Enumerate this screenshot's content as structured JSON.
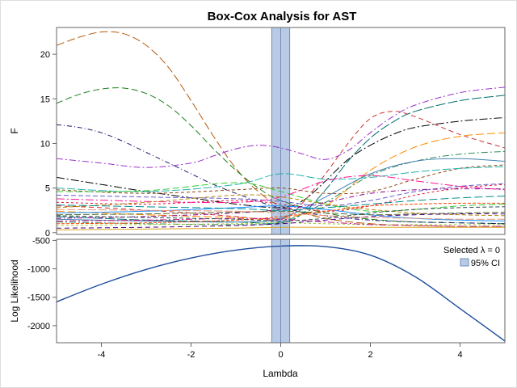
{
  "chart_data": {
    "type": "line",
    "title": "Box-Cox Analysis for AST",
    "xlabel": "Lambda",
    "xlim": [
      -5,
      5
    ],
    "xticks": [
      -4,
      -2,
      0,
      2,
      4
    ],
    "selected_lambda": 0,
    "ci": [
      -0.2,
      0.2
    ],
    "ci_fill": "#b9cbe4",
    "ci_stroke": "#6f8db9",
    "legend": {
      "placement": "top-right",
      "selected_label": "Selected λ = 0",
      "ci_label": "95% CI"
    },
    "top_panel": {
      "ylabel": "F",
      "ylim": [
        -0.2,
        23
      ],
      "yticks": [
        0,
        5,
        10,
        15,
        20
      ],
      "series": [
        {
          "color": "#b35806",
          "dash": "10,4",
          "x": [
            -5,
            -4.5,
            -4,
            -3.5,
            -3,
            -2.5,
            -2,
            -1.5,
            -1,
            -0.5,
            0,
            1,
            2,
            3,
            4,
            5
          ],
          "y": [
            21,
            21.9,
            22.5,
            22.3,
            21,
            18.5,
            14.8,
            10.8,
            7.2,
            4.6,
            3.0,
            1.6,
            1.0,
            0.8,
            0.7,
            0.7
          ]
        },
        {
          "color": "#1b7f1b",
          "dash": "8,4",
          "x": [
            -5,
            -4.5,
            -4,
            -3.5,
            -3,
            -2.5,
            -2,
            -1.5,
            -1,
            -0.5,
            0,
            1,
            2,
            3,
            4,
            5
          ],
          "y": [
            14.5,
            15.5,
            16.1,
            16.2,
            15.6,
            14.2,
            12.0,
            9.4,
            7.0,
            5.0,
            3.6,
            2.2,
            1.5,
            1.2,
            1.1,
            1.0
          ]
        },
        {
          "color": "#191970",
          "dash": "6,3,1,3",
          "x": [
            -5,
            -4.5,
            -4,
            -3.5,
            -3,
            -2.5,
            -2,
            -1.5,
            -1,
            -0.5,
            0,
            1,
            2,
            3,
            4,
            5
          ],
          "y": [
            12.1,
            11.8,
            11.2,
            10.2,
            9.0,
            7.8,
            6.6,
            5.4,
            4.4,
            3.5,
            2.8,
            1.9,
            1.4,
            1.2,
            1.1,
            1.0
          ]
        },
        {
          "color": "#9932cc",
          "dash": "8,3,2,3",
          "x": [
            -5,
            -4,
            -3,
            -2,
            -1.5,
            -1,
            -0.5,
            0,
            0.5,
            1,
            1.5,
            2,
            2.5,
            3,
            4,
            5
          ],
          "y": [
            8.3,
            7.8,
            7.3,
            7.8,
            8.6,
            9.4,
            9.8,
            9.5,
            8.8,
            8.2,
            9.2,
            11.2,
            13.0,
            14.3,
            15.7,
            16.3
          ]
        },
        {
          "color": "#006d6d",
          "dash": "12,3",
          "x": [
            -5,
            -4,
            -3,
            -2,
            -1,
            0,
            0.5,
            1,
            1.5,
            2,
            2.5,
            3,
            4,
            5
          ],
          "y": [
            1.8,
            1.6,
            1.4,
            1.3,
            1.2,
            1.1,
            2.2,
            4.8,
            8.0,
            10.6,
            12.4,
            13.6,
            14.8,
            15.4
          ]
        },
        {
          "color": "#000000",
          "dash": "10,3,2,3",
          "x": [
            -5,
            -4,
            -3,
            -2,
            -1,
            0,
            0.5,
            1,
            1.5,
            2,
            2.5,
            3,
            4,
            5
          ],
          "y": [
            6.2,
            5.4,
            4.6,
            3.9,
            3.2,
            2.8,
            3.6,
            5.8,
            8.2,
            9.8,
            11.0,
            11.8,
            12.5,
            12.9
          ]
        },
        {
          "color": "#cc3333",
          "dash": "6,4",
          "x": [
            -5,
            -4,
            -3,
            -2,
            -1,
            0,
            0.5,
            1,
            1.5,
            2,
            2.5,
            3,
            4,
            5
          ],
          "y": [
            3.0,
            2.8,
            2.5,
            2.2,
            1.8,
            1.5,
            3.4,
            6.6,
            10.0,
            12.8,
            13.6,
            13.0,
            11.0,
            9.5
          ]
        },
        {
          "color": "#ff8c00",
          "dash": "10,4",
          "x": [
            -5,
            -3,
            -1,
            0,
            1,
            2,
            3,
            4,
            5
          ],
          "y": [
            2.4,
            2.0,
            1.7,
            1.6,
            3.0,
            7.0,
            9.6,
            10.8,
            11.2
          ]
        },
        {
          "color": "#2e8b57",
          "dash": "8,3,2,3",
          "x": [
            -5,
            -3,
            -1,
            0,
            1,
            2,
            3,
            4,
            5
          ],
          "y": [
            1.2,
            1.0,
            0.9,
            1.2,
            3.4,
            6.4,
            8.0,
            8.8,
            9.1
          ]
        },
        {
          "color": "#4682b4",
          "dash": "",
          "x": [
            -5,
            -3,
            -1,
            0,
            1,
            2,
            3,
            4,
            5
          ],
          "y": [
            1.5,
            1.3,
            1.2,
            1.6,
            4.0,
            6.6,
            8.0,
            8.3,
            8.0
          ]
        },
        {
          "color": "#8b4513",
          "dash": "4,3",
          "x": [
            -5,
            -3,
            -1,
            0,
            1,
            2,
            3,
            4,
            5
          ],
          "y": [
            4.8,
            4.4,
            4.8,
            5.0,
            4.4,
            4.6,
            6.0,
            7.2,
            7.6
          ]
        },
        {
          "color": "#20b2aa",
          "dash": "10,3",
          "x": [
            -5,
            -3,
            -1,
            0,
            1,
            2,
            3,
            4,
            5
          ],
          "y": [
            5.0,
            4.6,
            5.4,
            6.6,
            6.0,
            6.2,
            6.8,
            7.2,
            7.4
          ]
        },
        {
          "color": "#6a5acd",
          "dash": "6,3",
          "x": [
            -5,
            -3,
            -1,
            0,
            1,
            2,
            3,
            4,
            5
          ],
          "y": [
            4.2,
            4.0,
            3.8,
            3.5,
            3.0,
            3.6,
            4.6,
            5.2,
            5.5
          ]
        },
        {
          "color": "#dc143c",
          "dash": "3,3",
          "x": [
            -5,
            -3,
            -1,
            0,
            1,
            2,
            3,
            4,
            5
          ],
          "y": [
            3.4,
            3.2,
            3.6,
            3.2,
            2.4,
            3.0,
            4.2,
            5.0,
            5.4
          ]
        },
        {
          "color": "#32cd32",
          "dash": "8,4",
          "x": [
            -5,
            -3,
            -1,
            0,
            1,
            2,
            3,
            4,
            5
          ],
          "y": [
            4.6,
            4.7,
            5.6,
            4.6,
            3.2,
            2.4,
            2.6,
            3.0,
            3.2
          ]
        },
        {
          "color": "#ff1493",
          "dash": "10,3,2,3",
          "x": [
            -5,
            -3,
            -1,
            0,
            1,
            2,
            3,
            4,
            5
          ],
          "y": [
            3.8,
            3.5,
            3.4,
            4.0,
            5.8,
            6.4,
            5.8,
            5.2,
            4.8
          ]
        },
        {
          "color": "#b8860b",
          "dash": "5,3",
          "x": [
            -5,
            -3,
            -1,
            0,
            1,
            2,
            3,
            4,
            5
          ],
          "y": [
            2.8,
            3.4,
            4.2,
            4.0,
            3.2,
            2.6,
            2.2,
            2.0,
            1.9
          ]
        },
        {
          "color": "#1e90ff",
          "dash": "",
          "x": [
            -5,
            -3,
            -1,
            0,
            1,
            2,
            3,
            4,
            5
          ],
          "y": [
            2.2,
            2.4,
            2.8,
            3.0,
            2.6,
            2.0,
            1.6,
            1.4,
            1.3
          ]
        },
        {
          "color": "#8b008b",
          "dash": "6,3,1,3",
          "x": [
            -5,
            -3,
            -1,
            0,
            1,
            2,
            3,
            4,
            5
          ],
          "y": [
            1.6,
            1.8,
            2.2,
            2.6,
            3.4,
            4.4,
            4.8,
            4.9,
            4.9
          ]
        },
        {
          "color": "#556b2f",
          "dash": "8,3",
          "x": [
            -5,
            -3,
            -1,
            0,
            1,
            2,
            3,
            4,
            5
          ],
          "y": [
            2.0,
            2.1,
            2.3,
            2.4,
            2.2,
            2.0,
            2.1,
            2.2,
            2.3
          ]
        },
        {
          "color": "#ff4500",
          "dash": "4,2",
          "x": [
            -5,
            -3,
            -1,
            0,
            1,
            2,
            3,
            4,
            5
          ],
          "y": [
            1.0,
            1.1,
            1.4,
            1.8,
            2.4,
            3.0,
            3.2,
            3.3,
            3.3
          ]
        },
        {
          "color": "#008b8b",
          "dash": "10,4",
          "x": [
            -5,
            -3,
            -1,
            0,
            1,
            2,
            3,
            4,
            5
          ],
          "y": [
            3.1,
            2.9,
            2.7,
            2.5,
            2.8,
            3.2,
            3.6,
            3.9,
            4.1
          ]
        },
        {
          "color": "#9acd32",
          "dash": "3,3",
          "x": [
            -5,
            -3,
            -1,
            0,
            1,
            2,
            3,
            4,
            5
          ],
          "y": [
            0.8,
            0.9,
            1.0,
            1.1,
            1.0,
            0.9,
            0.9,
            0.9,
            0.9
          ]
        },
        {
          "color": "#4b0082",
          "dash": "6,4",
          "x": [
            -5,
            -3,
            -1,
            0,
            1,
            2,
            3,
            4,
            5
          ],
          "y": [
            0.5,
            0.6,
            0.8,
            1.0,
            1.4,
            1.8,
            2.0,
            2.1,
            2.1
          ]
        },
        {
          "color": "#c71585",
          "dash": "8,3,2,3",
          "x": [
            -5,
            -3,
            -1,
            0,
            1,
            2,
            3,
            4,
            5
          ],
          "y": [
            1.3,
            1.4,
            1.6,
            1.5,
            1.2,
            0.9,
            0.8,
            0.7,
            0.7
          ]
        },
        {
          "color": "#daa520",
          "dash": "",
          "x": [
            -5,
            -3,
            -1,
            0,
            1,
            2,
            3,
            4,
            5
          ],
          "y": [
            0.3,
            0.4,
            0.5,
            0.6,
            0.6,
            0.6,
            0.6,
            0.6,
            0.6
          ]
        },
        {
          "color": "#2f4f4f",
          "dash": "5,3",
          "x": [
            -5,
            -3,
            -1,
            0,
            1,
            2,
            3,
            4,
            5
          ],
          "y": [
            1.9,
            1.7,
            1.5,
            1.3,
            1.6,
            2.2,
            2.6,
            2.8,
            2.9
          ]
        },
        {
          "color": "#e9967a",
          "dash": "10,3",
          "x": [
            -5,
            -3,
            -1,
            0,
            1,
            2,
            3,
            4,
            5
          ],
          "y": [
            2.6,
            2.5,
            2.4,
            2.2,
            1.9,
            1.7,
            1.6,
            1.5,
            1.5
          ]
        }
      ]
    },
    "bottom_panel": {
      "ylabel": "Log Likelihood",
      "ylim": [
        -2300,
        -480
      ],
      "yticks": [
        -500,
        -1000,
        -1500,
        -2000
      ],
      "series": [
        {
          "color": "#1f4e9c",
          "dash": "",
          "x": [
            -5,
            -4,
            -3,
            -2,
            -1,
            0,
            1,
            2,
            3,
            4,
            5
          ],
          "y": [
            -1580,
            -1270,
            -1010,
            -810,
            -670,
            -600,
            -610,
            -760,
            -1140,
            -1700,
            -2270
          ]
        }
      ]
    }
  }
}
